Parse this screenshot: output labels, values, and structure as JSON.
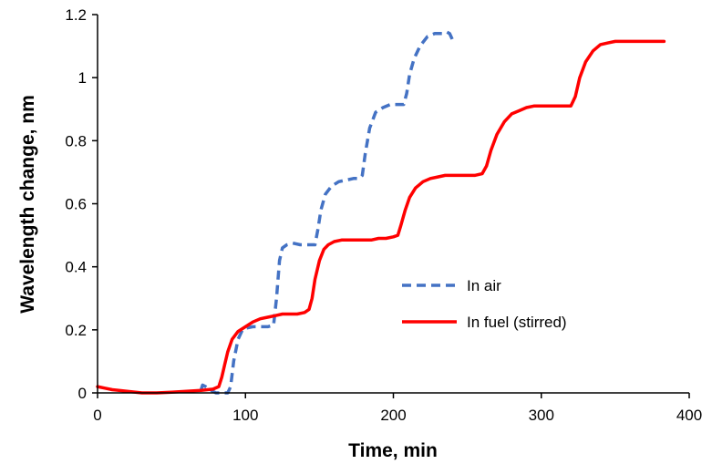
{
  "chart_data": {
    "type": "line",
    "title": "",
    "xlabel": "Time, min",
    "ylabel": "Wavelength change, nm",
    "xlim": [
      0,
      400
    ],
    "ylim": [
      0,
      1.2
    ],
    "xticks": [
      "0",
      "100",
      "200",
      "300",
      "400"
    ],
    "yticks": [
      "0",
      "0.2",
      "0.4",
      "0.6",
      "0.8",
      "1",
      "1.2"
    ],
    "grid": false,
    "legend_position": "center-right",
    "series": [
      {
        "name": "In air",
        "color": "#4472C4",
        "dash": "dashed",
        "x": [
          70,
          71,
          73,
          76,
          80,
          85,
          88,
          90,
          92,
          95,
          98,
          100,
          105,
          110,
          115,
          119,
          121,
          123,
          125,
          128,
          132,
          137,
          142,
          147,
          149,
          151,
          154,
          158,
          163,
          168,
          173,
          177,
          179,
          181,
          184,
          188,
          193,
          198,
          203,
          207,
          209,
          211,
          214,
          218,
          223,
          228,
          233,
          236,
          238,
          239,
          240
        ],
        "y": [
          0.01,
          0.025,
          0.02,
          0.01,
          0.0,
          0.0,
          0.0,
          0.02,
          0.1,
          0.17,
          0.2,
          0.205,
          0.21,
          0.21,
          0.21,
          0.215,
          0.3,
          0.42,
          0.46,
          0.47,
          0.475,
          0.47,
          0.47,
          0.47,
          0.52,
          0.58,
          0.63,
          0.655,
          0.67,
          0.675,
          0.68,
          0.68,
          0.69,
          0.76,
          0.84,
          0.89,
          0.905,
          0.915,
          0.915,
          0.915,
          0.95,
          1.01,
          1.06,
          1.1,
          1.13,
          1.14,
          1.14,
          1.145,
          1.14,
          1.13,
          1.12
        ]
      },
      {
        "name": "In fuel (stirred)",
        "color": "#FF0000",
        "dash": "solid",
        "x": [
          0,
          5,
          10,
          20,
          30,
          40,
          50,
          60,
          70,
          78,
          82,
          84,
          86,
          88,
          91,
          95,
          100,
          105,
          110,
          115,
          120,
          125,
          130,
          135,
          140,
          143,
          145,
          147,
          150,
          153,
          156,
          160,
          165,
          170,
          175,
          180,
          185,
          190,
          195,
          200,
          203,
          205,
          208,
          211,
          215,
          220,
          225,
          230,
          235,
          240,
          245,
          250,
          255,
          260,
          263,
          266,
          270,
          275,
          280,
          285,
          290,
          295,
          300,
          310,
          320,
          323,
          326,
          330,
          335,
          340,
          345,
          350,
          360,
          370,
          383
        ],
        "y": [
          0.02,
          0.015,
          0.01,
          0.005,
          0.0,
          0.0,
          0.002,
          0.005,
          0.008,
          0.012,
          0.02,
          0.05,
          0.09,
          0.13,
          0.17,
          0.195,
          0.21,
          0.225,
          0.235,
          0.24,
          0.245,
          0.25,
          0.25,
          0.25,
          0.255,
          0.265,
          0.3,
          0.36,
          0.42,
          0.455,
          0.47,
          0.48,
          0.485,
          0.485,
          0.485,
          0.485,
          0.485,
          0.49,
          0.49,
          0.495,
          0.5,
          0.53,
          0.58,
          0.62,
          0.65,
          0.67,
          0.68,
          0.685,
          0.69,
          0.69,
          0.69,
          0.69,
          0.69,
          0.695,
          0.72,
          0.77,
          0.82,
          0.86,
          0.885,
          0.895,
          0.905,
          0.91,
          0.91,
          0.91,
          0.91,
          0.94,
          1.0,
          1.05,
          1.085,
          1.105,
          1.11,
          1.115,
          1.115,
          1.115,
          1.115
        ]
      }
    ]
  }
}
